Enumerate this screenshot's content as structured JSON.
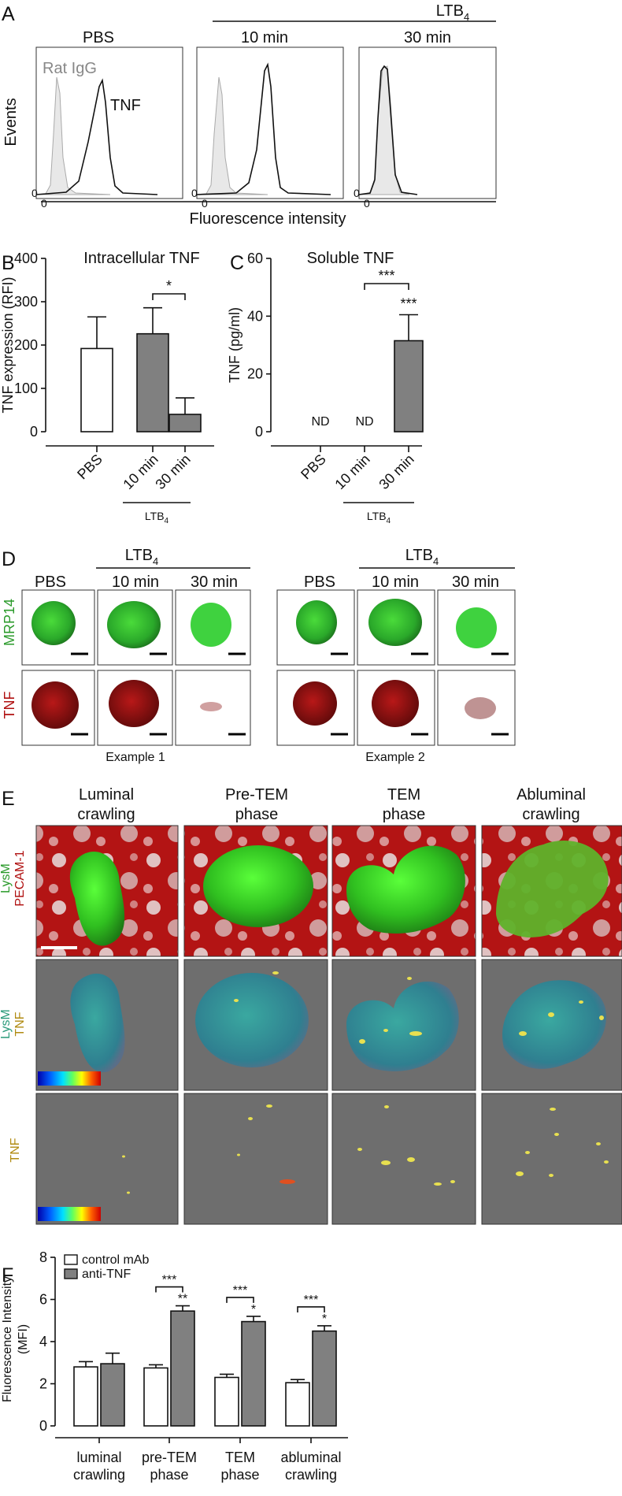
{
  "panel_labels": {
    "A": "A",
    "B": "B",
    "C": "C",
    "D": "D",
    "E": "E",
    "F": "F"
  },
  "panelA": {
    "treatment_header": "LTB",
    "treatment_sub": "4",
    "columns": [
      "PBS",
      "10 min",
      "30 min"
    ],
    "legend_isotype": "Rat IgG",
    "legend_tnf": "TNF",
    "ylabel": "Events",
    "xlabel": "Fluorescence intensity",
    "zero": "0"
  },
  "chart_data": [
    {
      "type": "bar",
      "panel": "B",
      "title": "Intracellular TNF",
      "ylabel": "TNF expression (RFI)",
      "categories": [
        "PBS",
        "10 min",
        "30 min"
      ],
      "values": [
        192,
        226,
        40
      ],
      "errors": [
        73,
        60,
        38
      ],
      "colors": [
        "#ffffff",
        "#808080",
        "#808080"
      ],
      "ylim": [
        0,
        400
      ],
      "yticks": [
        "0",
        "100",
        "200",
        "300",
        "400"
      ],
      "group_label": "LTB",
      "group_sub": "4",
      "significance": [
        {
          "from": 1,
          "to": 2,
          "label": "*"
        }
      ]
    },
    {
      "type": "bar",
      "panel": "C",
      "title": "Soluble TNF",
      "ylabel": "TNF (pg/ml)",
      "categories": [
        "PBS",
        "10 min",
        "30 min"
      ],
      "values": [
        null,
        null,
        31.5
      ],
      "errors": [
        null,
        null,
        9
      ],
      "value_labels": [
        "ND",
        "ND",
        ""
      ],
      "colors": [
        "#ffffff",
        "#ffffff",
        "#808080"
      ],
      "ylim": [
        0,
        60
      ],
      "yticks": [
        "0",
        "20",
        "40",
        "60"
      ],
      "group_label": "LTB",
      "group_sub": "4",
      "significance": [
        {
          "from": 1,
          "to": 2,
          "label": "***"
        }
      ],
      "bar_stars": [
        "",
        "",
        "***"
      ]
    },
    {
      "type": "bar",
      "panel": "F",
      "ylabel": "Fluorescence Intensity",
      "ylabel2": "(MFI)",
      "categories": [
        "luminal\ncrawling",
        "pre-TEM\nphase",
        "TEM\nphase",
        "abluminal\ncrawling"
      ],
      "series": [
        {
          "name": "control mAb",
          "values": [
            2.8,
            2.75,
            2.3,
            2.05
          ],
          "errors": [
            0.25,
            0.15,
            0.15,
            0.15
          ],
          "color": "#ffffff"
        },
        {
          "name": "anti-TNF",
          "values": [
            2.95,
            5.45,
            4.95,
            4.5
          ],
          "errors": [
            0.5,
            0.25,
            0.25,
            0.25
          ],
          "color": "#808080"
        }
      ],
      "ylim": [
        0,
        8
      ],
      "yticks": [
        "0",
        "2",
        "4",
        "6",
        "8"
      ],
      "bracket_stars": [
        "",
        "***",
        "***",
        "***"
      ],
      "bar_stars": [
        "",
        "**",
        "*",
        "*"
      ]
    }
  ],
  "panelD": {
    "treatment_header": "LTB",
    "treatment_sub": "4",
    "columns": [
      "PBS",
      "10 min",
      "30 min"
    ],
    "rows": [
      "MRP14",
      "TNF"
    ],
    "examples": [
      "Example 1",
      "Example 2"
    ]
  },
  "panelE": {
    "columns": [
      [
        "Luminal",
        "crawling"
      ],
      [
        "Pre-TEM",
        "phase"
      ],
      [
        "TEM",
        "phase"
      ],
      [
        "Abluminal",
        "crawling"
      ]
    ],
    "row1_labels": [
      "LysM",
      "PECAM-1"
    ],
    "row2_labels": [
      "LysM",
      "TNF"
    ],
    "row3_labels": [
      "TNF"
    ]
  }
}
